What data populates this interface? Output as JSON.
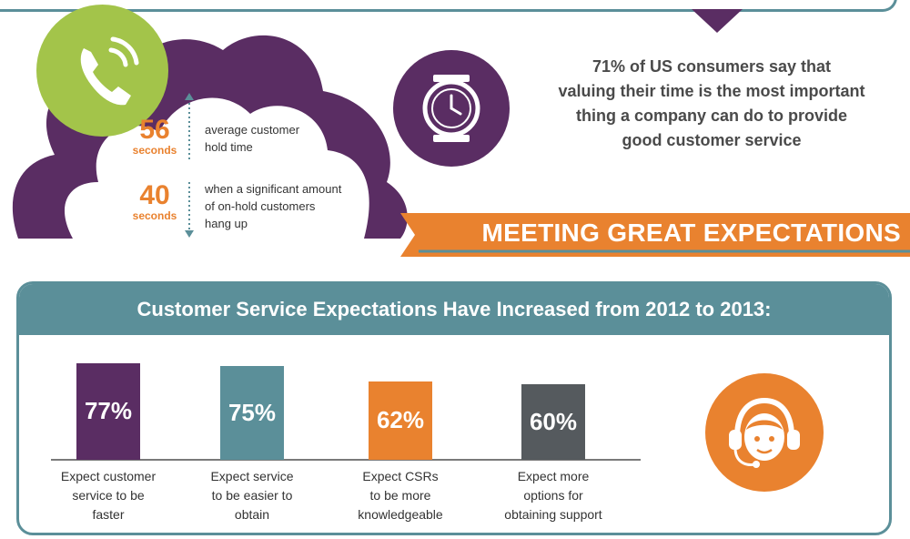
{
  "hold_stats": [
    {
      "number": "56",
      "unit": "seconds",
      "description_lines": [
        "average customer",
        "hold time"
      ]
    },
    {
      "number": "40",
      "unit": "seconds",
      "description_lines": [
        "when a significant amount",
        "of on-hold customers",
        "hang up"
      ]
    }
  ],
  "consumer_stat": {
    "lines": [
      "71% of US consumers say that",
      "valuing their time is the most important",
      "thing a company can do to provide",
      "good customer service"
    ]
  },
  "banner": {
    "text": "MEETING GREAT EXPECTATIONS"
  },
  "expectations": {
    "title": "Customer Service Expectations Have Increased from 2012 to 2013:"
  },
  "chart_data": {
    "type": "bar",
    "categories": [
      "Expect customer service to be faster",
      "Expect service to be easier to obtain",
      "Expect CSRs to be more knowledgeable",
      "Expect more options for obtaining support"
    ],
    "values": [
      77,
      75,
      62,
      60
    ],
    "value_labels": [
      "77%",
      "75%",
      "62%",
      "60%"
    ],
    "caption_lines": [
      [
        "Expect customer",
        "service to be",
        "faster"
      ],
      [
        "Expect service",
        "to be easier to",
        "obtain"
      ],
      [
        "Expect CSRs",
        "to be more",
        "knowledgeable"
      ],
      [
        "Expect more",
        "options for",
        "obtaining support"
      ]
    ],
    "colors": [
      "#5a2d63",
      "#5b8f99",
      "#e9822f",
      "#555a5e"
    ],
    "ylim": [
      0,
      100
    ],
    "title": "",
    "xlabel": "",
    "ylabel": ""
  },
  "colors": {
    "teal": "#5b8f99",
    "purple": "#5a2d63",
    "orange": "#e9822f",
    "green": "#a3c44a",
    "gray": "#555a5e"
  },
  "icons": [
    "phone-icon",
    "alarm-clock-icon",
    "headset-agent-icon"
  ]
}
